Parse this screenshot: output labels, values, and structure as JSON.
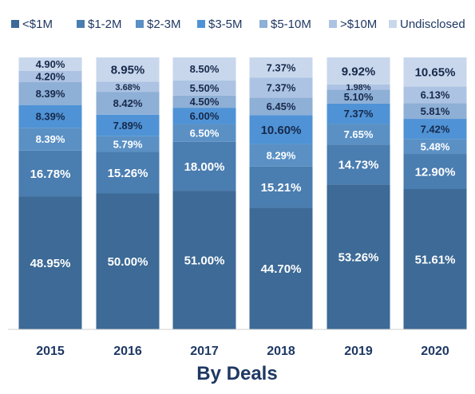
{
  "chart_data": {
    "type": "bar",
    "stacked": true,
    "percent_stacked": true,
    "title": "By Deals",
    "xlabel": "",
    "ylabel": "",
    "ylim": [
      0,
      100
    ],
    "grid": false,
    "legend_position": "top",
    "categories": [
      "2015",
      "2016",
      "2017",
      "2018",
      "2019",
      "2020"
    ],
    "series": [
      {
        "name": "<$1M",
        "color": "#3D6A96",
        "label_color": "#ffffff",
        "values": [
          48.95,
          50.0,
          51.0,
          44.7,
          53.26,
          51.61
        ],
        "labels": [
          "48.95%",
          "50.00%",
          "51.00%",
          "44.70%",
          "53.26%",
          "51.61%"
        ]
      },
      {
        "name": "$1-2M",
        "color": "#4A7DB0",
        "label_color": "#ffffff",
        "values": [
          16.78,
          15.26,
          18.0,
          15.21,
          14.73,
          12.9
        ],
        "labels": [
          "16.78%",
          "15.26%",
          "18.00%",
          "15.21%",
          "14.73%",
          "12.90%"
        ]
      },
      {
        "name": "$2-3M",
        "color": "#5A90C4",
        "label_color": "#ffffff",
        "values": [
          8.39,
          5.79,
          6.5,
          8.29,
          7.65,
          5.48
        ],
        "labels": [
          "8.39%",
          "5.79%",
          "6.50%",
          "8.29%",
          "7.65%",
          "5.48%"
        ]
      },
      {
        "name": "$3-5M",
        "color": "#4F93D6",
        "label_color": "#17294A",
        "values": [
          8.39,
          7.89,
          6.0,
          10.6,
          7.37,
          7.42
        ],
        "labels": [
          "8.39%",
          "7.89%",
          "6.00%",
          "10.60%",
          "7.37%",
          "7.42%"
        ]
      },
      {
        "name": "$5-10M",
        "color": "#8EAFD6",
        "label_color": "#17294A",
        "values": [
          8.39,
          8.42,
          4.5,
          6.45,
          5.1,
          5.81
        ],
        "labels": [
          "8.39%",
          "8.42%",
          "4.50%",
          "6.45%",
          "5.10%",
          "5.81%"
        ]
      },
      {
        "name": ">$10M",
        "color": "#ADC3E3",
        "label_color": "#17294A",
        "values": [
          4.2,
          3.68,
          5.5,
          7.37,
          1.98,
          6.13
        ],
        "labels": [
          "4.20%",
          "3.68%",
          "5.50%",
          "7.37%",
          "1.98%",
          "6.13%"
        ]
      },
      {
        "name": "Undisclosed",
        "color": "#C8D7EC",
        "label_color": "#17294A",
        "values": [
          4.9,
          8.95,
          8.5,
          7.37,
          9.92,
          10.65
        ],
        "labels": [
          "4.90%",
          "8.95%",
          "8.50%",
          "7.37%",
          "9.92%",
          "10.65%"
        ]
      }
    ]
  }
}
